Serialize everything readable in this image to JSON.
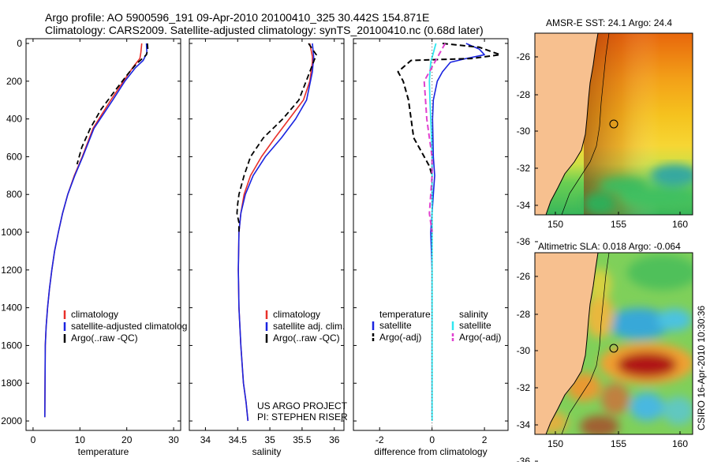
{
  "header": {
    "line1": "Argo profile: AO 5900596_191 09-Apr-2010 20100410_325 30.442S 154.871E",
    "line2": "Climatology: CARS2009. Satellite-adjusted climatology: synTS_20100410.nc (0.68d later)"
  },
  "colors": {
    "climatology": "#e8302a",
    "satellite": "#1a24e0",
    "argo": "#000000",
    "sal_satellite": "#30e6f0",
    "sal_argo": "#e040d0",
    "land": "#f7c08f"
  },
  "depth_axis": {
    "ticks": [
      0,
      200,
      400,
      600,
      800,
      1000,
      1200,
      1400,
      1600,
      1800,
      2000
    ],
    "range": [
      0,
      2050
    ],
    "reversed": true
  },
  "chart_data": [
    {
      "type": "line",
      "xlabel": "temperature",
      "xlim": [
        -1.5,
        31.5
      ],
      "xticks": [
        0,
        10,
        20,
        30
      ],
      "legend": [
        "climatology",
        "satellite-adjusted climatolog",
        "Argo(..raw -QC)"
      ],
      "series": [
        {
          "name": "climatology",
          "key": "climatology",
          "dash": false,
          "width": 1.6,
          "x": [
            23.2,
            23.0,
            22.8,
            21.5,
            19.3,
            16.6,
            12.8,
            10.5,
            8.8,
            7.4,
            6.3,
            5.4,
            4.6,
            4.0,
            3.5,
            3.1,
            2.8,
            2.6,
            2.5
          ],
          "y": [
            0,
            50,
            80,
            120,
            200,
            300,
            450,
            600,
            700,
            800,
            900,
            1000,
            1100,
            1200,
            1300,
            1400,
            1500,
            1600,
            1980
          ]
        },
        {
          "name": "satellite-adjusted climatolog",
          "key": "satellite",
          "dash": false,
          "width": 1.6,
          "x": [
            24.2,
            24.3,
            23.5,
            21.8,
            19.6,
            17.0,
            13.0,
            10.6,
            8.9,
            7.4,
            6.3,
            5.4,
            4.6,
            4.0,
            3.5,
            3.1,
            2.8,
            2.6,
            2.5
          ],
          "y": [
            0,
            50,
            90,
            130,
            200,
            300,
            450,
            600,
            700,
            800,
            900,
            1000,
            1100,
            1200,
            1300,
            1400,
            1500,
            1600,
            1980
          ]
        },
        {
          "name": "Argo(..raw -QC)",
          "key": "argo",
          "dash": true,
          "width": 1.8,
          "x": [
            24.4,
            24.5,
            24.2,
            22.0,
            20.3,
            17.5,
            14.5,
            12.2,
            10.4,
            9.4
          ],
          "y": [
            0,
            30,
            60,
            110,
            160,
            250,
            350,
            450,
            550,
            640
          ]
        }
      ]
    },
    {
      "type": "line",
      "xlabel": "salinity",
      "xlim": [
        33.75,
        36.15
      ],
      "xticks": [
        34,
        34.5,
        35,
        35.5,
        36
      ],
      "legend": [
        "climatology",
        "satellite adj. clim.",
        "Argo(..raw -QC)"
      ],
      "series": [
        {
          "name": "climatology",
          "key": "climatology",
          "dash": false,
          "width": 1.6,
          "x": [
            35.62,
            35.66,
            35.66,
            35.62,
            35.52,
            35.3,
            35.08,
            34.87,
            34.7,
            34.6,
            34.55,
            34.52,
            34.51,
            34.52,
            34.55,
            34.59,
            34.63,
            34.66
          ],
          "y": [
            0,
            70,
            100,
            200,
            300,
            400,
            500,
            600,
            700,
            800,
            900,
            1000,
            1200,
            1400,
            1600,
            1800,
            1900,
            2000
          ]
        },
        {
          "name": "satellite adj. clim.",
          "key": "satellite",
          "dash": false,
          "width": 1.6,
          "x": [
            35.66,
            35.68,
            35.66,
            35.57,
            35.4,
            35.18,
            34.93,
            34.74,
            34.62,
            34.55,
            34.52,
            34.51,
            34.52,
            34.55,
            34.59,
            34.63,
            34.66
          ],
          "y": [
            0,
            70,
            150,
            300,
            400,
            500,
            600,
            700,
            800,
            900,
            1000,
            1200,
            1400,
            1600,
            1800,
            1900,
            2000
          ]
        },
        {
          "name": "Argo(..raw -QC)",
          "key": "argo",
          "dash": true,
          "width": 1.8,
          "x": [
            35.6,
            35.66,
            35.72,
            35.62,
            35.45,
            35.2,
            34.9,
            34.7,
            34.6,
            34.52,
            34.5,
            34.49,
            34.52,
            34.52
          ],
          "y": [
            0,
            30,
            60,
            150,
            300,
            400,
            500,
            600,
            700,
            800,
            850,
            900,
            950,
            1000
          ]
        }
      ]
    },
    {
      "type": "line",
      "xlabel": "difference from climatology",
      "xlim": [
        -3.0,
        2.9
      ],
      "xticks": [
        -2,
        0,
        2
      ],
      "legend_left_title": "temperature",
      "legend_right_title": "salinity",
      "legend": [
        "satellite",
        "Argo(-adj)",
        "satellite",
        "Argo(-adj)"
      ],
      "series": [
        {
          "name": "satellite",
          "key": "satellite",
          "dash": false,
          "width": 1.6,
          "x": [
            1.3,
            1.8,
            2.0,
            1.3,
            0.7,
            0.4,
            0.2,
            0.05,
            0.02,
            0.05,
            0.1,
            0.05,
            0.0,
            -0.05,
            0.0,
            0.0,
            0.0,
            0.0,
            0.0
          ],
          "y": [
            0,
            30,
            60,
            80,
            100,
            150,
            200,
            300,
            400,
            600,
            700,
            800,
            900,
            1000,
            1200,
            1400,
            1600,
            1800,
            1980
          ]
        },
        {
          "name": "Argo(-adj)",
          "key": "argo",
          "dash": true,
          "width": 2.0,
          "x": [
            0.4,
            1.8,
            2.6,
            1.5,
            -0.8,
            -1.3,
            -1.1,
            -0.9,
            -0.8,
            -0.7,
            -0.5,
            -0.3,
            -0.1,
            0.0
          ],
          "y": [
            0,
            20,
            60,
            80,
            90,
            150,
            200,
            300,
            400,
            500,
            550,
            600,
            650,
            700
          ]
        },
        {
          "name": "satellite",
          "key": "sal_satellite",
          "dash": false,
          "width": 1.8,
          "x": [
            0.15,
            0.05,
            -0.05,
            -0.1,
            -0.08,
            -0.05,
            -0.02,
            0.0,
            0.0,
            0.0,
            0.0,
            0.0,
            0.0,
            0.0
          ],
          "y": [
            0,
            50,
            100,
            200,
            300,
            400,
            500,
            600,
            800,
            1000,
            1400,
            1700,
            1900,
            2000
          ]
        },
        {
          "name": "Argo(-adj)",
          "key": "sal_argo",
          "dash": true,
          "width": 2.0,
          "x": [
            0.5,
            0.3,
            0.1,
            -0.3,
            -0.25,
            -0.2,
            -0.1,
            0.0,
            0.0,
            -0.05,
            -0.1,
            0.0
          ],
          "y": [
            0,
            50,
            100,
            200,
            300,
            400,
            500,
            600,
            700,
            800,
            900,
            1000
          ]
        }
      ]
    }
  ],
  "maps": [
    {
      "title": "AMSR-E SST: 24.1 Argo: 24.4",
      "yticks": [
        "-26",
        "-28",
        "-30",
        "-32",
        "-34",
        "-36"
      ],
      "xticks": [
        "150",
        "155",
        "160"
      ]
    },
    {
      "title": "Altimetric SLA: 0.018 Argo: -0.064",
      "yticks": [
        "-26",
        "-28",
        "-30",
        "-32",
        "-34",
        "-36"
      ],
      "xticks": [
        "150",
        "155",
        "160"
      ]
    }
  ],
  "panel_notes": {
    "project": "US ARGO PROJECT",
    "pi": "PI: STEPHEN RISER"
  },
  "side_label": "CSIRO 16-Apr-2010 10:30:36"
}
